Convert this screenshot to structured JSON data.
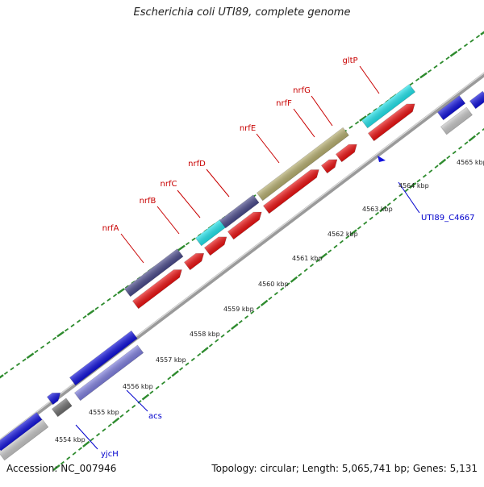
{
  "title": "Escherichia coli UTI89, complete genome",
  "footer": {
    "accession": "Accession: NC_007946",
    "summary": "Topology: circular; Length: 5,065,741 bp; Genes: 5,131"
  },
  "colors": {
    "red_label": "#c80000",
    "blue_label": "#0000cc",
    "tick": "#2e8b2e",
    "red_gene": "#ee1111",
    "navy_gene": "#4a4a8c",
    "cyan_gene": "#22e6ee",
    "olive_gene": "#b8b070",
    "blue_gene": "#1111dd",
    "lavender_gene": "#8080e0",
    "gray_gene": "#c8c8c8",
    "dark_gray_gene": "#707070"
  },
  "kbp_labels": [
    "4554 kbp",
    "4555 kbp",
    "4556 kbp",
    "4557 kbp",
    "4558 kbp",
    "4559 kbp",
    "4560 kbp",
    "4561 kbp",
    "4562 kbp",
    "4563 kbp",
    "4564 kbp",
    "4565 kbp"
  ],
  "gene_labels_upper": [
    "nrfA",
    "nrfB",
    "nrfC",
    "nrfD",
    "nrfE",
    "nrfF",
    "nrfG",
    "gltP"
  ],
  "gene_labels_lower": [
    "yjcH",
    "acs",
    "UTI89_C4667"
  ]
}
